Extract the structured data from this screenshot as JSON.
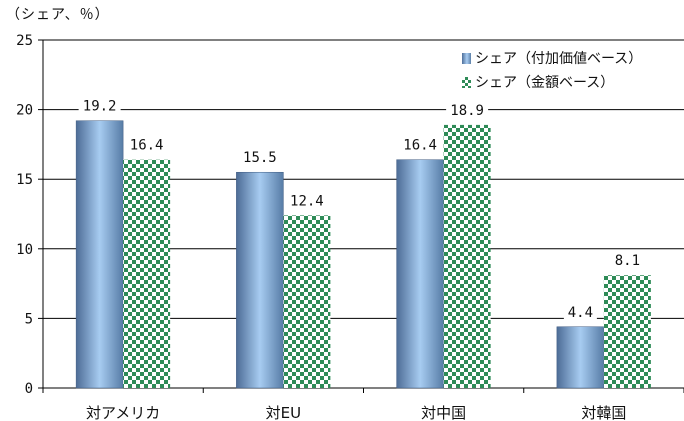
{
  "chart_data": {
    "type": "bar",
    "unit_label": "（シェア、％）",
    "categories": [
      "対アメリカ",
      "対EU",
      "対中国",
      "対韓国"
    ],
    "series": [
      {
        "name": "シェア（付加価値ベース）",
        "values": [
          19.2,
          15.5,
          16.4,
          4.4
        ],
        "labels": [
          "19.2",
          "15.5",
          "16.4",
          "4.4"
        ]
      },
      {
        "name": "シェア（金額ベース）",
        "values": [
          16.4,
          12.4,
          18.9,
          8.1
        ],
        "labels": [
          "16.4",
          "12.4",
          "18.9",
          "8.1"
        ]
      }
    ],
    "yticks": [
      0,
      5,
      10,
      15,
      20,
      25
    ],
    "ylim": [
      0,
      25
    ],
    "grid": true,
    "legend": "top-right"
  },
  "colors": {
    "series1": "#8fb6e0",
    "series2": "#2e8b57"
  }
}
